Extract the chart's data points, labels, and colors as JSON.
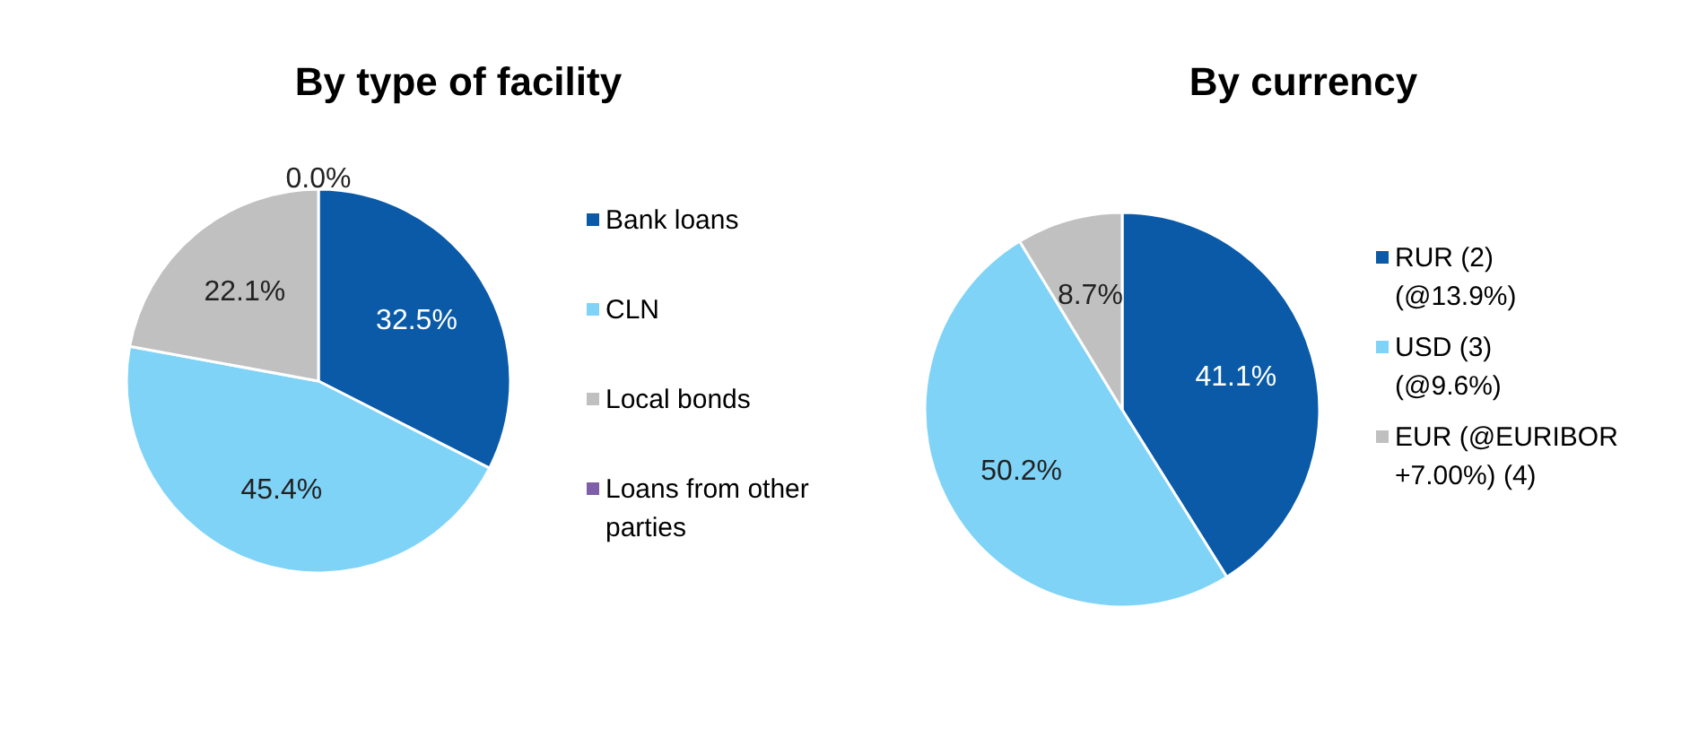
{
  "chart_data": [
    {
      "type": "pie",
      "title": "By type of facility",
      "categories": [
        "Bank loans",
        "CLN",
        "Local bonds",
        "Loans from other\nparties"
      ],
      "values": [
        32.5,
        45.4,
        22.1,
        0.0
      ],
      "colors": [
        "#0a5aa8",
        "#7fd3f7",
        "#c0c0c0",
        "#7f5fa8"
      ],
      "value_labels": [
        "32.5%",
        "45.4%",
        "22.1%",
        "0.0%"
      ],
      "legend": "right"
    },
    {
      "type": "pie",
      "title": "By currency",
      "categories": [
        "RUR (2)\n(@13.9%)",
        "USD (3)\n(@9.6%)",
        "EUR (@EURIBOR\n+7.00%) (4)"
      ],
      "values": [
        41.1,
        50.2,
        8.7
      ],
      "colors": [
        "#0a5aa8",
        "#7fd3f7",
        "#c0c0c0"
      ],
      "value_labels": [
        "41.1%",
        "50.2%",
        "8.7%"
      ],
      "legend": "right"
    }
  ]
}
